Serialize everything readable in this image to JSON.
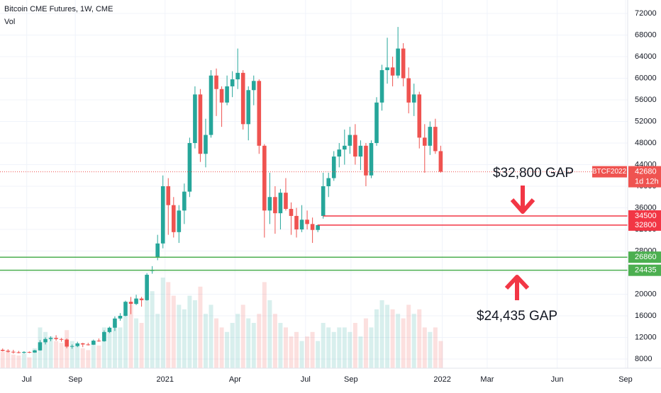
{
  "chart_data": {
    "type": "candlestick",
    "title": "Bitcoin CME Futures, 1W, CME",
    "subtitle": "Vol",
    "open": [
      9700,
      9500,
      9350,
      9250,
      9150,
      9300,
      9200,
      9600,
      11100,
      11700,
      11900,
      11700,
      11600,
      10300,
      10400,
      10900,
      10700,
      10650,
      11400,
      11300,
      13000,
      13800,
      15500,
      16000,
      18600,
      18200,
      19200,
      18900,
      24300,
      26860,
      29400,
      40000,
      36500,
      31500,
      35500,
      39000,
      48000,
      57000,
      46000,
      49500,
      60500,
      58000,
      55500,
      58500,
      59800,
      61000,
      51500,
      57800,
      59500,
      47500,
      35500,
      38000,
      35000,
      38800,
      35800,
      34500,
      32000,
      33800,
      33000,
      31900,
      34500,
      40000,
      41500,
      45500,
      46800,
      47500,
      49500,
      45500,
      47500,
      42000,
      48000,
      55500,
      61500,
      62000,
      60500,
      65500,
      60000,
      55500,
      57000,
      49000,
      47500,
      51000,
      46500
    ],
    "high": [
      9950,
      9800,
      9700,
      9500,
      9450,
      9400,
      9700,
      11500,
      12000,
      12200,
      12400,
      11900,
      11800,
      10700,
      11200,
      11000,
      11000,
      11600,
      11800,
      13300,
      14000,
      15900,
      16500,
      18800,
      19500,
      19900,
      19500,
      23900,
      25200,
      31000,
      42000,
      41500,
      38000,
      36500,
      40500,
      49000,
      58500,
      58000,
      52500,
      61500,
      61800,
      58500,
      60500,
      61300,
      65500,
      61500,
      58500,
      60500,
      59800,
      47800,
      42500,
      40000,
      39500,
      41500,
      37000,
      36000,
      36500,
      35500,
      34200,
      32900,
      42500,
      42500,
      46500,
      48000,
      50500,
      51000,
      51500,
      48500,
      48000,
      48500,
      56500,
      62500,
      67500,
      64000,
      69500,
      66500,
      62000,
      59000,
      57500,
      51500,
      52000,
      52500,
      47500
    ],
    "low": [
      9400,
      9200,
      9000,
      9050,
      9000,
      9100,
      9150,
      9550,
      10700,
      11300,
      11400,
      11200,
      10000,
      9900,
      10200,
      10200,
      10500,
      10600,
      11200,
      11200,
      12800,
      13200,
      15100,
      15900,
      16300,
      18000,
      17700,
      18800,
      23800,
      26300,
      28500,
      31000,
      30500,
      29500,
      33000,
      38000,
      47000,
      44500,
      43500,
      49000,
      53000,
      51000,
      55000,
      56500,
      58000,
      50500,
      48500,
      55000,
      46000,
      30500,
      33000,
      31200,
      32000,
      35500,
      31000,
      30500,
      31500,
      32000,
      29500,
      31500,
      34000,
      38000,
      41000,
      43500,
      44000,
      46000,
      44000,
      43000,
      40000,
      41500,
      47500,
      54000,
      59000,
      58500,
      60000,
      58500,
      53500,
      53000,
      47000,
      42500,
      45800,
      46000,
      42500
    ],
    "close": [
      9500,
      9350,
      9250,
      9150,
      9300,
      9200,
      9600,
      11100,
      11700,
      11900,
      11700,
      11600,
      10300,
      10400,
      10900,
      10700,
      10650,
      11400,
      11300,
      13000,
      13800,
      15500,
      16000,
      18600,
      18200,
      19200,
      18900,
      23600,
      24435,
      29400,
      40000,
      36500,
      31500,
      35500,
      39000,
      48000,
      57000,
      46000,
      49500,
      60500,
      58000,
      55500,
      58500,
      59800,
      61000,
      51500,
      57800,
      59500,
      47500,
      35500,
      38000,
      35000,
      38800,
      35800,
      34500,
      32000,
      33800,
      33000,
      31900,
      32800,
      40000,
      41500,
      45500,
      46800,
      47500,
      49500,
      45500,
      47500,
      42000,
      48000,
      55500,
      61500,
      62000,
      60500,
      65500,
      60000,
      55500,
      57000,
      49000,
      47500,
      51000,
      46500,
      42680
    ],
    "volume": [
      18,
      20,
      15,
      14,
      16,
      12,
      22,
      45,
      40,
      35,
      30,
      28,
      42,
      30,
      25,
      22,
      20,
      28,
      25,
      45,
      40,
      50,
      45,
      60,
      70,
      55,
      50,
      75,
      85,
      60,
      100,
      95,
      80,
      70,
      65,
      80,
      75,
      90,
      60,
      70,
      55,
      45,
      40,
      50,
      60,
      70,
      55,
      50,
      60,
      95,
      75,
      60,
      50,
      45,
      35,
      40,
      30,
      35,
      40,
      30,
      50,
      45,
      40,
      45,
      45,
      40,
      50,
      35,
      55,
      45,
      65,
      75,
      70,
      65,
      60,
      55,
      70,
      60,
      65,
      45,
      40,
      45,
      30
    ],
    "up_color": "#26a69a",
    "down_color": "#ef5350",
    "ylim": [
      8000,
      72000
    ],
    "yticks": [
      8000,
      12000,
      16000,
      20000,
      24000,
      28000,
      32000,
      36000,
      40000,
      44000,
      48000,
      52000,
      56000,
      60000,
      64000,
      68000,
      72000
    ],
    "xlim": [
      -0.5,
      117
    ],
    "xticks": [
      {
        "value": 4.5,
        "label": "Jul"
      },
      {
        "value": 13.6,
        "label": "Sep"
      },
      {
        "value": 30.4,
        "label": "2021"
      },
      {
        "value": 43.5,
        "label": "Apr"
      },
      {
        "value": 56.7,
        "label": "Jul"
      },
      {
        "value": 65.2,
        "label": "Sep"
      },
      {
        "value": 82.3,
        "label": "2022"
      },
      {
        "value": 90.7,
        "label": "Mar"
      },
      {
        "value": 103.8,
        "label": "Jun"
      },
      {
        "value": 116.6,
        "label": "Sep"
      }
    ],
    "grid": true,
    "levels": [
      {
        "value": 34500,
        "color": "#f23645",
        "x_from": 60
      },
      {
        "value": 32800,
        "color": "#f23645",
        "x_from": 59
      },
      {
        "value": 26860,
        "color": "#4caf50",
        "x_from": -0.5
      },
      {
        "value": 24435,
        "color": "#4caf50",
        "x_from": -0.5
      }
    ],
    "last_price": {
      "value": 42680,
      "symbol": "BTCF2022",
      "countdown": "1d 12h"
    },
    "annotations": [
      "$32,800  GAP",
      "$24,435 GAP"
    ]
  }
}
